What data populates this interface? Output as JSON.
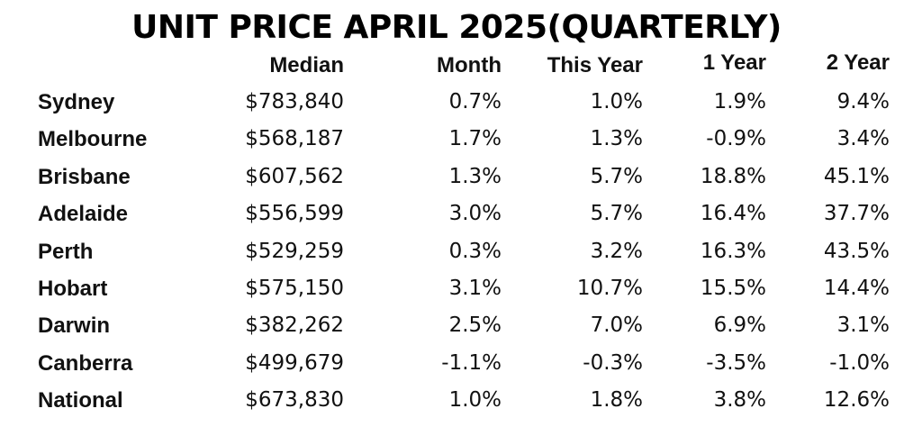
{
  "title": "UNIT PRICE APRIL 2025(QUARTERLY)",
  "chart_data": {
    "type": "table",
    "title": "UNIT PRICE APRIL 2025(QUARTERLY)",
    "columns": [
      "Median",
      "Month",
      "This Year",
      "1 Year",
      "2 Year"
    ],
    "rows": [
      {
        "label": "Sydney",
        "values": [
          "$783,840",
          "0.7%",
          "1.0%",
          "1.9%",
          "9.4%"
        ]
      },
      {
        "label": "Melbourne",
        "values": [
          "$568,187",
          "1.7%",
          "1.3%",
          "-0.9%",
          "3.4%"
        ]
      },
      {
        "label": "Brisbane",
        "values": [
          "$607,562",
          "1.3%",
          "5.7%",
          "18.8%",
          "45.1%"
        ]
      },
      {
        "label": "Adelaide",
        "values": [
          "$556,599",
          "3.0%",
          "5.7%",
          "16.4%",
          "37.7%"
        ]
      },
      {
        "label": "Perth",
        "values": [
          "$529,259",
          "0.3%",
          "3.2%",
          "16.3%",
          "43.5%"
        ]
      },
      {
        "label": "Hobart",
        "values": [
          "$575,150",
          "3.1%",
          "10.7%",
          "15.5%",
          "14.4%"
        ]
      },
      {
        "label": "Darwin",
        "values": [
          "$382,262",
          "2.5%",
          "7.0%",
          "6.9%",
          "3.1%"
        ]
      },
      {
        "label": "Canberra",
        "values": [
          "$499,679",
          "-1.1%",
          "-0.3%",
          "-3.5%",
          "-1.0%"
        ]
      },
      {
        "label": "National",
        "values": [
          "$673,830",
          "1.0%",
          "1.8%",
          "3.8%",
          "12.6%"
        ]
      }
    ]
  }
}
